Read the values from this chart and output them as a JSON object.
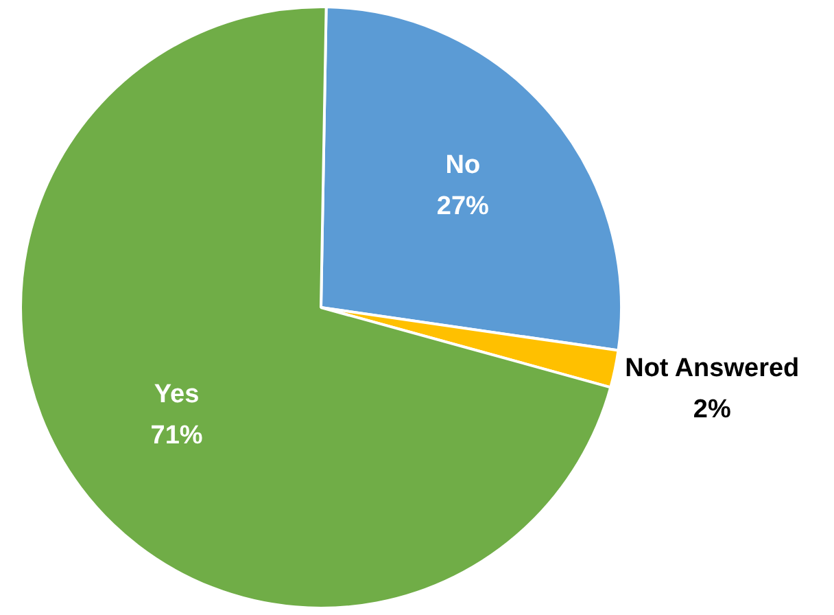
{
  "chart_data": {
    "type": "pie",
    "categories": [
      "No",
      "Not Answered",
      "Yes"
    ],
    "values": [
      27,
      2,
      71
    ],
    "colors": [
      "#5b9bd5",
      "#ffc000",
      "#70ad47"
    ],
    "value_labels": [
      "27%",
      "2%",
      "71%"
    ],
    "legend": false
  }
}
